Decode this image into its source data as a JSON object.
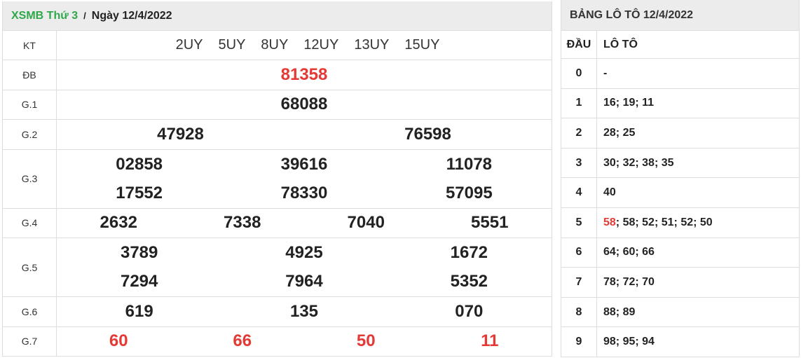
{
  "header": {
    "region": "XSMB Thứ 3",
    "separator": "/",
    "date": "Ngày 12/4/2022"
  },
  "kt": {
    "label": "KT",
    "codes": [
      "2UY",
      "5UY",
      "8UY",
      "12UY",
      "13UY",
      "15UY"
    ]
  },
  "prizes": [
    {
      "label": "ĐB",
      "lines": [
        [
          "81358"
        ]
      ],
      "red": true
    },
    {
      "label": "G.1",
      "lines": [
        [
          "68088"
        ]
      ]
    },
    {
      "label": "G.2",
      "lines": [
        [
          "47928",
          "76598"
        ]
      ]
    },
    {
      "label": "G.3",
      "lines": [
        [
          "02858",
          "39616",
          "11078"
        ],
        [
          "17552",
          "78330",
          "57095"
        ]
      ]
    },
    {
      "label": "G.4",
      "lines": [
        [
          "2632",
          "7338",
          "7040",
          "5551"
        ]
      ]
    },
    {
      "label": "G.5",
      "lines": [
        [
          "3789",
          "4925",
          "1672"
        ],
        [
          "7294",
          "7964",
          "5352"
        ]
      ]
    },
    {
      "label": "G.6",
      "lines": [
        [
          "619",
          "135",
          "070"
        ]
      ]
    },
    {
      "label": "G.7",
      "lines": [
        [
          "60",
          "66",
          "50",
          "11"
        ]
      ],
      "red": true
    }
  ],
  "loto": {
    "title": "BẢNG LÔ TÔ 12/4/2022",
    "col_head": "ĐẦU",
    "col_loto": "LÔ TÔ",
    "rows": [
      {
        "head": "0",
        "values": [
          "-"
        ]
      },
      {
        "head": "1",
        "values": [
          "16",
          "19",
          "11"
        ]
      },
      {
        "head": "2",
        "values": [
          "28",
          "25"
        ]
      },
      {
        "head": "3",
        "values": [
          "30",
          "32",
          "38",
          "35"
        ]
      },
      {
        "head": "4",
        "values": [
          "40"
        ]
      },
      {
        "head": "5",
        "values": [
          "58",
          "58",
          "52",
          "51",
          "52",
          "50"
        ],
        "highlight_first": true
      },
      {
        "head": "6",
        "values": [
          "64",
          "60",
          "66"
        ]
      },
      {
        "head": "7",
        "values": [
          "78",
          "72",
          "70"
        ]
      },
      {
        "head": "8",
        "values": [
          "88",
          "89"
        ]
      },
      {
        "head": "9",
        "values": [
          "98",
          "95",
          "94"
        ]
      }
    ]
  },
  "colors": {
    "green": "#2ea84a",
    "red": "#e53935"
  }
}
